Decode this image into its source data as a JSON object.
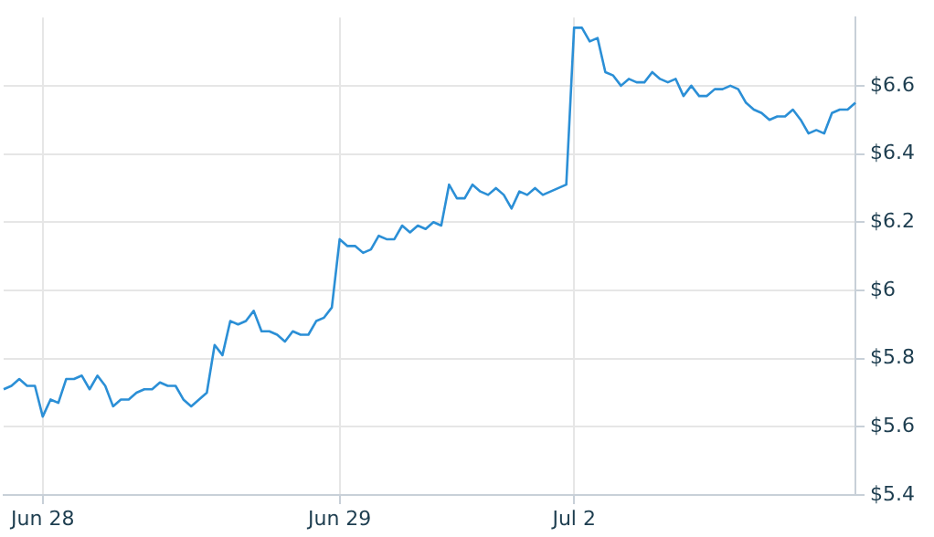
{
  "chart_data": {
    "type": "line",
    "categories": [
      null,
      null,
      null,
      null,
      null,
      "Jun 28",
      null,
      null,
      null,
      null,
      null,
      null,
      null,
      null,
      null,
      null,
      null,
      null,
      null,
      null,
      null,
      null,
      null,
      null,
      null,
      null,
      null,
      null,
      null,
      null,
      null,
      null,
      null,
      null,
      null,
      null,
      null,
      null,
      null,
      null,
      null,
      null,
      null,
      "Jun 29",
      null,
      null,
      null,
      null,
      null,
      null,
      null,
      null,
      null,
      null,
      null,
      null,
      null,
      null,
      null,
      null,
      null,
      null,
      null,
      null,
      null,
      null,
      null,
      null,
      null,
      null,
      null,
      null,
      null,
      "Jul 2",
      null,
      null,
      null,
      null,
      null,
      null,
      null,
      null,
      null,
      null,
      null,
      null,
      null,
      null,
      null,
      null,
      null,
      null,
      null,
      null,
      null,
      null,
      null,
      null,
      null,
      null,
      null,
      null,
      null,
      null,
      null,
      null,
      null,
      null,
      null,
      null
    ],
    "series": [
      {
        "color": "#2b8fd6",
        "values": [
          5.71,
          5.72,
          5.74,
          5.72,
          5.72,
          5.63,
          5.68,
          5.67,
          5.74,
          5.74,
          5.75,
          5.71,
          5.75,
          5.72,
          5.66,
          5.68,
          5.68,
          5.7,
          5.71,
          5.71,
          5.73,
          5.72,
          5.72,
          5.68,
          5.66,
          5.68,
          5.7,
          5.84,
          5.81,
          5.91,
          5.9,
          5.91,
          5.94,
          5.88,
          5.88,
          5.87,
          5.85,
          5.88,
          5.87,
          5.87,
          5.91,
          5.92,
          5.95,
          6.15,
          6.13,
          6.13,
          6.11,
          6.12,
          6.16,
          6.15,
          6.15,
          6.19,
          6.17,
          6.19,
          6.18,
          6.2,
          6.19,
          6.31,
          6.27,
          6.27,
          6.31,
          6.29,
          6.28,
          6.3,
          6.28,
          6.24,
          6.29,
          6.28,
          6.3,
          6.28,
          6.29,
          6.3,
          6.31,
          6.77,
          6.77,
          6.73,
          6.74,
          6.64,
          6.63,
          6.6,
          6.62,
          6.61,
          6.61,
          6.64,
          6.62,
          6.61,
          6.62,
          6.57,
          6.6,
          6.57,
          6.57,
          6.59,
          6.59,
          6.6,
          6.59,
          6.55,
          6.53,
          6.52,
          6.5,
          6.51,
          6.51,
          6.53,
          6.5,
          6.46,
          6.47,
          6.46,
          6.52,
          6.53,
          6.53,
          6.55
        ]
      }
    ],
    "ylim": [
      5.4,
      6.8
    ],
    "yticks": [
      {
        "value": 5.4,
        "label": "$5.4"
      },
      {
        "value": 5.6,
        "label": "$5.6"
      },
      {
        "value": 5.8,
        "label": "$5.8"
      },
      {
        "value": 6,
        "label": "$6"
      },
      {
        "value": 6.2,
        "label": "$6.2"
      },
      {
        "value": 6.4,
        "label": "$6.4"
      },
      {
        "value": 6.6,
        "label": "$6.6"
      }
    ],
    "grid": true,
    "legend": false,
    "marker": "none",
    "line_style": "solid"
  }
}
